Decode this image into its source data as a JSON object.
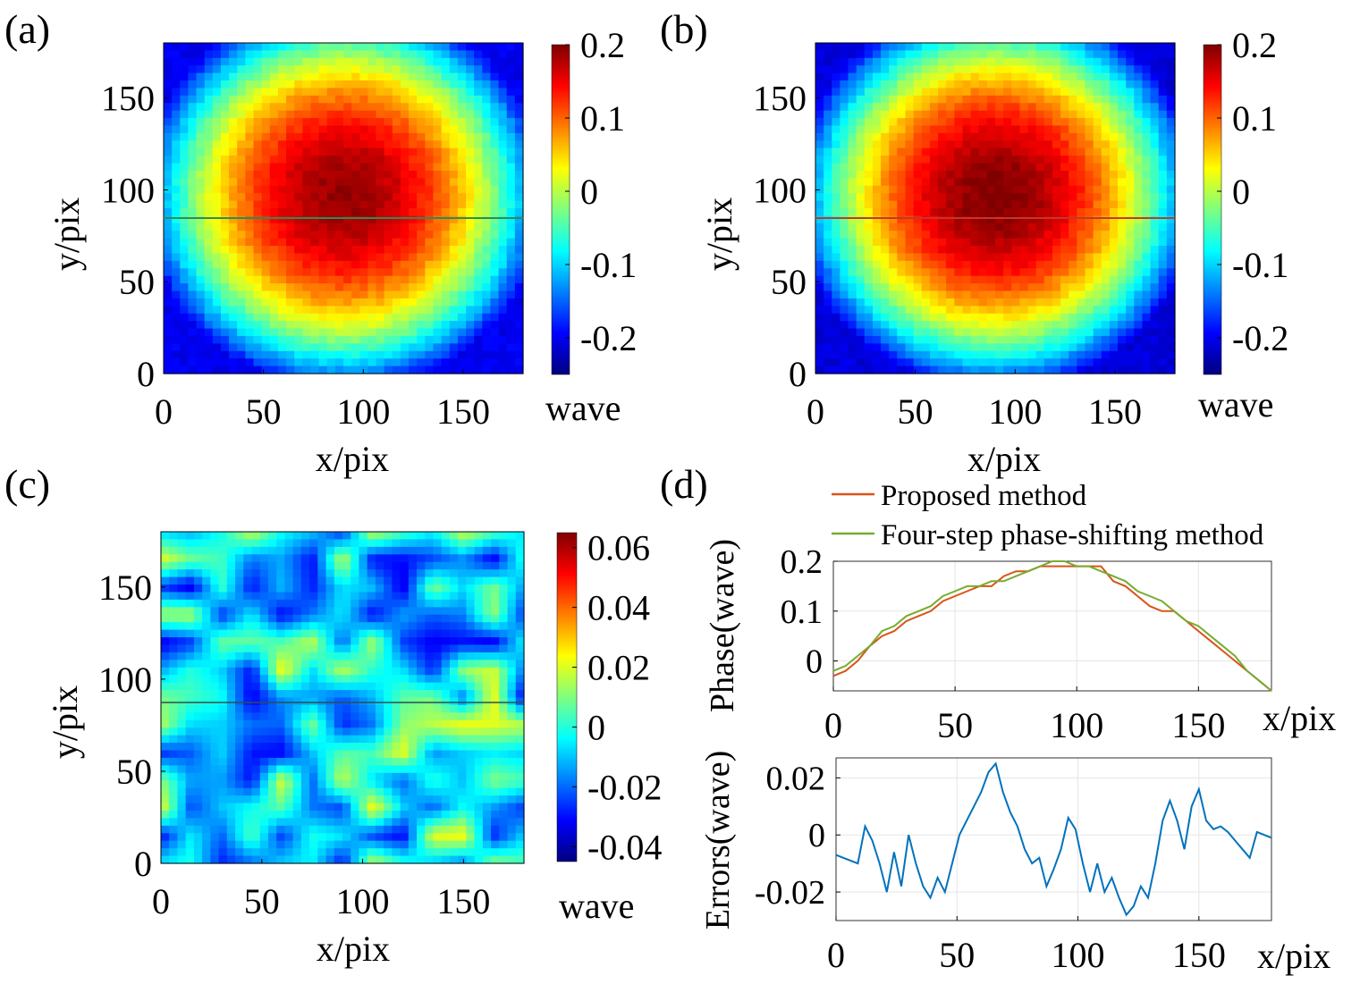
{
  "panels": {
    "a": {
      "label": "(a)",
      "xlabel": "x/pix",
      "ylabel": "y/pix",
      "cbar_label": "wave"
    },
    "b": {
      "label": "(b)",
      "xlabel": "x/pix",
      "ylabel": "y/pix",
      "cbar_label": "wave"
    },
    "c": {
      "label": "(c)",
      "xlabel": "x/pix",
      "ylabel": "y/pix",
      "cbar_label": "wave"
    },
    "d": {
      "label": "(d)"
    }
  },
  "colors": {
    "proposed": "#d95319",
    "four_step": "#77ac30",
    "errors": "#0072bd"
  },
  "chart_data": [
    {
      "id": "a",
      "type": "heatmap",
      "title": "",
      "xlabel": "x/pix",
      "ylabel": "y/pix",
      "xlim": [
        0,
        180
      ],
      "ylim": [
        0,
        180
      ],
      "xticks": [
        0,
        50,
        100,
        150
      ],
      "yticks": [
        0,
        50,
        100,
        150
      ],
      "colorbar": {
        "label": "wave",
        "min": -0.25,
        "max": 0.2,
        "ticks": [
          0.2,
          0.1,
          0,
          -0.1,
          -0.2
        ],
        "tick_labels": [
          "0.2",
          "0.1",
          "0",
          "-0.1",
          "-0.2"
        ]
      },
      "field": {
        "description": "dome-shaped wavefront",
        "center": [
          90,
          97
        ],
        "peak": 0.19,
        "edge": -0.12,
        "corner": -0.2
      },
      "profile_line_y": 84
    },
    {
      "id": "b",
      "type": "heatmap",
      "title": "",
      "xlabel": "x/pix",
      "ylabel": "y/pix",
      "xlim": [
        0,
        180
      ],
      "ylim": [
        0,
        180
      ],
      "xticks": [
        0,
        50,
        100,
        150
      ],
      "yticks": [
        0,
        50,
        100,
        150
      ],
      "colorbar": {
        "label": "wave",
        "min": -0.25,
        "max": 0.2,
        "ticks": [
          0.2,
          0.1,
          0,
          -0.1,
          -0.2
        ],
        "tick_labels": [
          "0.2",
          "0.1",
          "0",
          "-0.1",
          "-0.2"
        ]
      },
      "field": {
        "description": "dome-shaped wavefront",
        "center": [
          90,
          97
        ],
        "peak": 0.2,
        "edge": -0.12,
        "corner": -0.21
      },
      "profile_line_y": 84
    },
    {
      "id": "c",
      "type": "heatmap",
      "title": "",
      "xlabel": "x/pix",
      "ylabel": "y/pix",
      "xlim": [
        0,
        180
      ],
      "ylim": [
        0,
        180
      ],
      "xticks": [
        0,
        50,
        100,
        150
      ],
      "yticks": [
        0,
        50,
        100,
        150
      ],
      "colorbar": {
        "label": "wave",
        "min": -0.045,
        "max": 0.065,
        "ticks": [
          0.06,
          0.04,
          0.02,
          0,
          -0.02,
          -0.04
        ],
        "tick_labels": [
          "0.06",
          "0.04",
          "0.02",
          "0",
          "-0.02",
          "-0.04"
        ]
      },
      "field": {
        "description": "residual error map (difference)",
        "mean": -0.005,
        "range": [
          -0.045,
          0.065
        ]
      },
      "profile_line_y": 84
    },
    {
      "id": "d-top",
      "type": "line",
      "title": "",
      "xlabel": "x/pix",
      "ylabel": "Phase(wave)",
      "xlim": [
        0,
        180
      ],
      "ylim": [
        -0.06,
        0.2
      ],
      "xticks": [
        0,
        50,
        100,
        150
      ],
      "yticks": [
        0,
        0.1,
        0.2
      ],
      "ytick_labels": [
        "0",
        "0.1",
        "0.2"
      ],
      "legend_position": "top-left, above axes",
      "x": [
        0,
        5,
        10,
        15,
        20,
        25,
        30,
        35,
        40,
        45,
        50,
        55,
        60,
        65,
        70,
        75,
        80,
        85,
        90,
        95,
        100,
        105,
        110,
        115,
        120,
        125,
        130,
        135,
        140,
        145,
        150,
        155,
        160,
        165,
        170,
        175,
        180
      ],
      "series": [
        {
          "name": "Proposed method",
          "values": [
            -0.03,
            -0.02,
            0.0,
            0.03,
            0.05,
            0.06,
            0.08,
            0.09,
            0.1,
            0.12,
            0.13,
            0.14,
            0.15,
            0.15,
            0.17,
            0.18,
            0.18,
            0.19,
            0.19,
            0.19,
            0.19,
            0.19,
            0.19,
            0.16,
            0.15,
            0.13,
            0.11,
            0.1,
            0.1,
            0.08,
            0.06,
            0.04,
            0.02,
            0.0,
            -0.02,
            -0.04,
            -0.06
          ]
        },
        {
          "name": "Four-step phase-shifting method",
          "values": [
            -0.02,
            -0.01,
            0.01,
            0.03,
            0.06,
            0.07,
            0.09,
            0.1,
            0.11,
            0.13,
            0.14,
            0.15,
            0.15,
            0.16,
            0.16,
            0.17,
            0.18,
            0.19,
            0.2,
            0.2,
            0.19,
            0.19,
            0.18,
            0.17,
            0.16,
            0.14,
            0.13,
            0.12,
            0.1,
            0.08,
            0.07,
            0.05,
            0.03,
            0.01,
            -0.02,
            -0.04,
            -0.06
          ]
        }
      ]
    },
    {
      "id": "d-bottom",
      "type": "line",
      "title": "",
      "xlabel": "x/pix",
      "ylabel": "Errors(wave)",
      "xlim": [
        0,
        180
      ],
      "ylim": [
        -0.03,
        0.027
      ],
      "xticks": [
        0,
        50,
        100,
        150
      ],
      "yticks": [
        -0.02,
        0,
        0.02
      ],
      "ytick_labels": [
        "-0.02",
        "0",
        "0.02"
      ],
      "x": [
        0,
        3,
        6,
        9,
        12,
        15,
        18,
        21,
        24,
        27,
        30,
        33,
        36,
        39,
        42,
        45,
        48,
        51,
        54,
        57,
        60,
        63,
        66,
        69,
        72,
        75,
        78,
        81,
        84,
        87,
        90,
        93,
        96,
        99,
        102,
        105,
        108,
        111,
        114,
        117,
        120,
        123,
        126,
        129,
        132,
        135,
        138,
        141,
        144,
        147,
        150,
        153,
        156,
        159,
        162,
        165,
        168,
        171,
        174,
        177,
        180
      ],
      "series": [
        {
          "name": "Errors",
          "values": [
            -0.007,
            -0.008,
            -0.009,
            -0.01,
            0.003,
            -0.002,
            -0.01,
            -0.02,
            -0.006,
            -0.018,
            0.0,
            -0.01,
            -0.018,
            -0.022,
            -0.015,
            -0.02,
            -0.01,
            0.0,
            0.005,
            0.01,
            0.015,
            0.022,
            0.025,
            0.015,
            0.008,
            0.003,
            -0.005,
            -0.01,
            -0.008,
            -0.018,
            -0.012,
            -0.005,
            0.006,
            0.002,
            -0.01,
            -0.02,
            -0.01,
            -0.02,
            -0.015,
            -0.022,
            -0.028,
            -0.025,
            -0.018,
            -0.022,
            -0.01,
            0.005,
            0.012,
            0.005,
            -0.005,
            0.01,
            0.016,
            0.005,
            0.002,
            0.003,
            0.001,
            -0.002,
            -0.005,
            -0.008,
            0.001,
            0.0,
            -0.001
          ]
        }
      ]
    }
  ]
}
